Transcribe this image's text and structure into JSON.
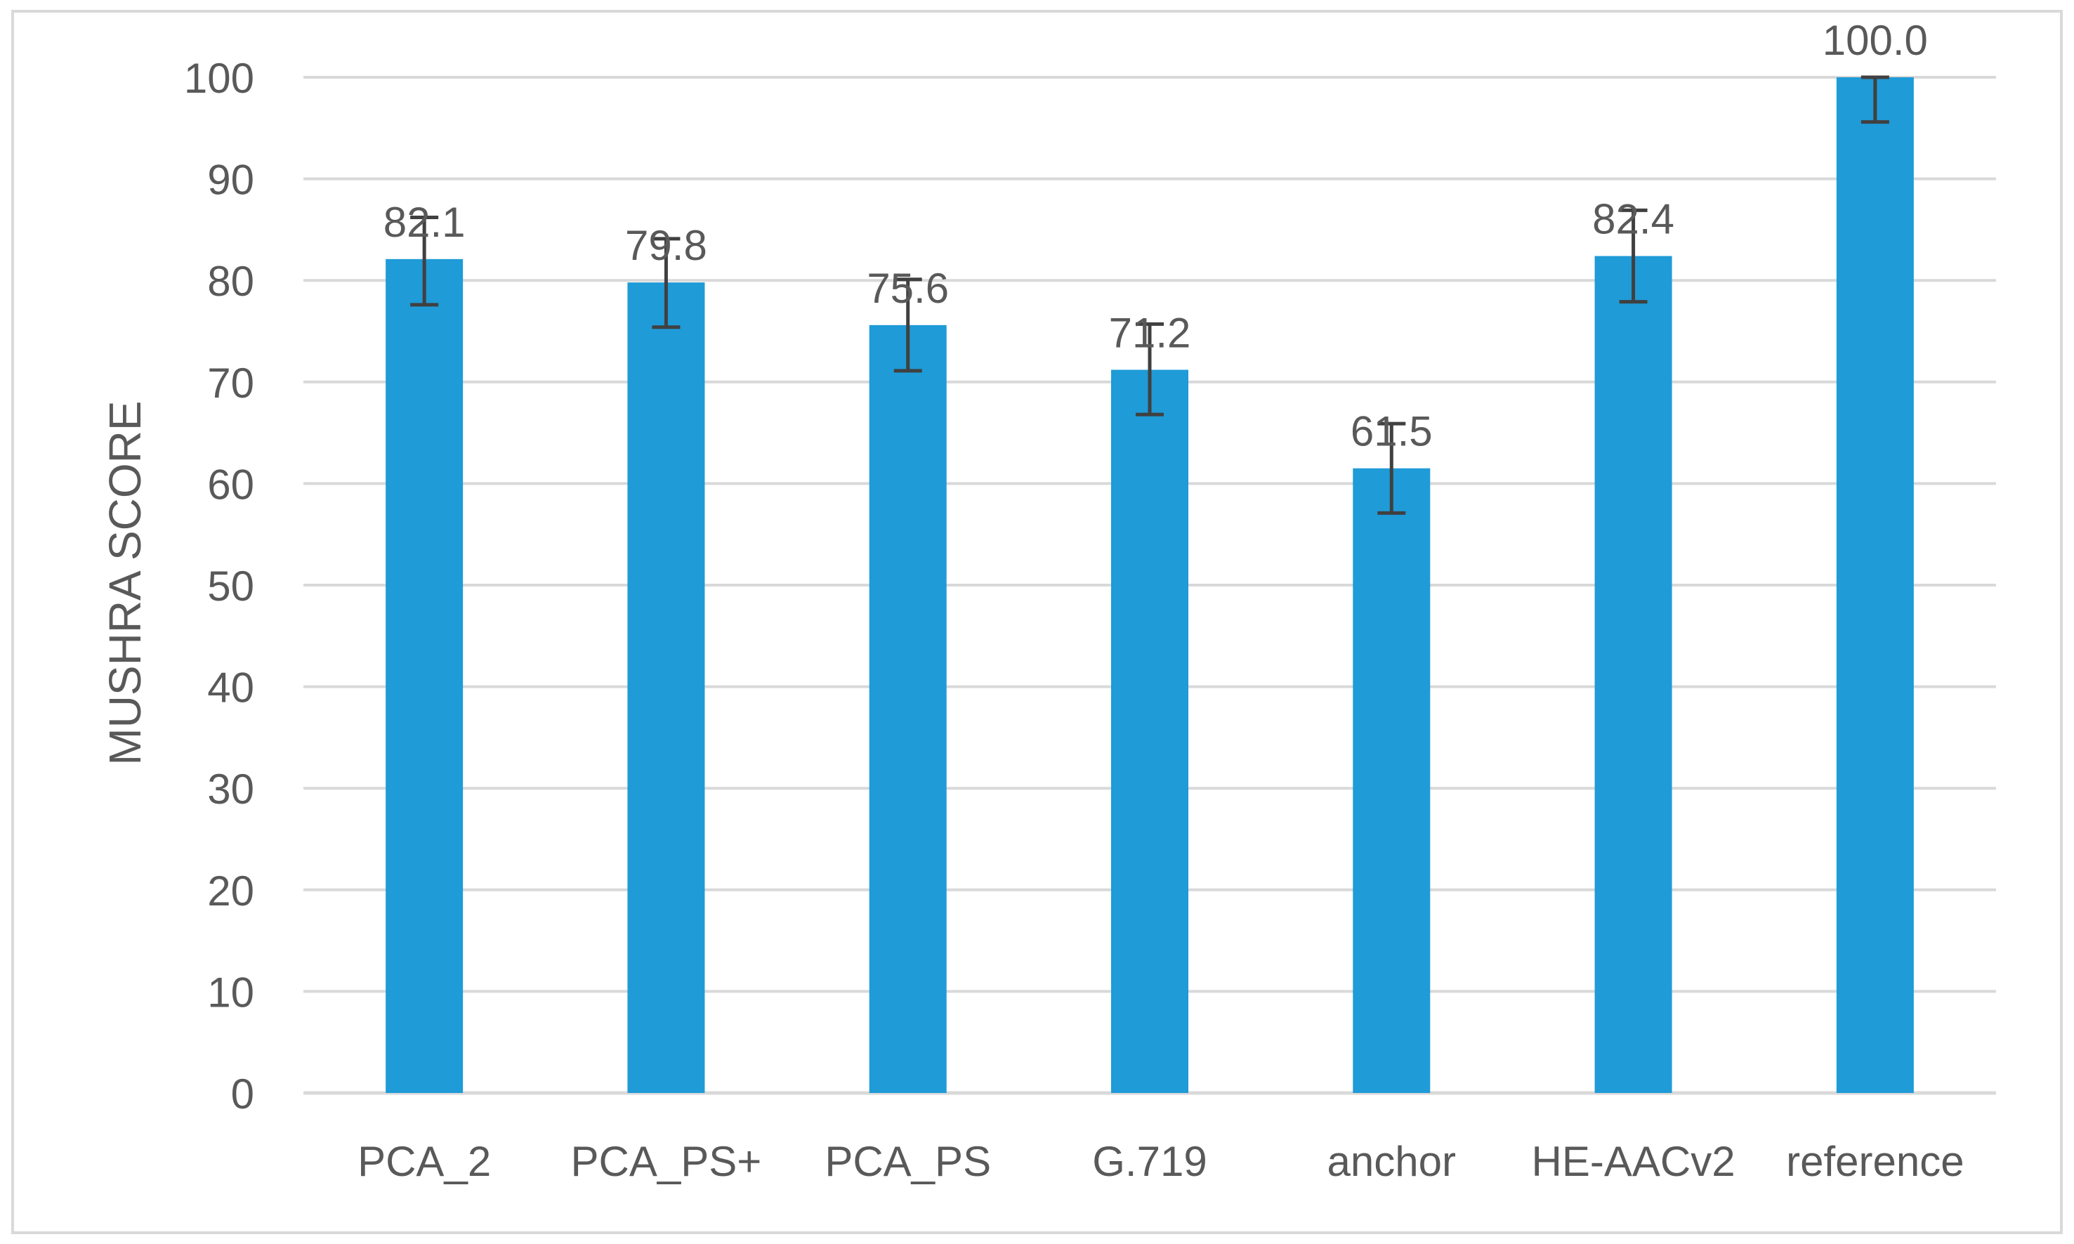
{
  "chart_data": {
    "type": "bar",
    "title": "",
    "xlabel": "",
    "ylabel": "MUSHRA SCORE",
    "ylim": [
      0,
      100
    ],
    "yticks": [
      0,
      10,
      20,
      30,
      40,
      50,
      60,
      70,
      80,
      90,
      100
    ],
    "grid": true,
    "legend": "none",
    "categories": [
      "PCA_2",
      "PCA_PS+",
      "PCA_PS",
      "G.719",
      "anchor",
      "HE-AACv2",
      "reference"
    ],
    "values": [
      82.1,
      79.8,
      75.6,
      71.2,
      61.5,
      82.4,
      100.0
    ],
    "value_labels": [
      "82.1",
      "79.8",
      "75.6",
      "71.2",
      "61.5",
      "82.4",
      "100.0"
    ],
    "error_bars": [
      {
        "low": 77.6,
        "high": 86.2
      },
      {
        "low": 75.4,
        "high": 84.1
      },
      {
        "low": 71.1,
        "high": 80.1
      },
      {
        "low": 66.8,
        "high": 75.7
      },
      {
        "low": 57.1,
        "high": 65.9
      },
      {
        "low": 77.9,
        "high": 86.9
      },
      {
        "low": 95.6,
        "high": 100.0
      }
    ],
    "colors": {
      "bar": "#1f9bd7",
      "grid": "#d9d9d9",
      "axis_text": "#595959",
      "error_bar": "#404040",
      "frame": "#d9d9d9"
    }
  }
}
